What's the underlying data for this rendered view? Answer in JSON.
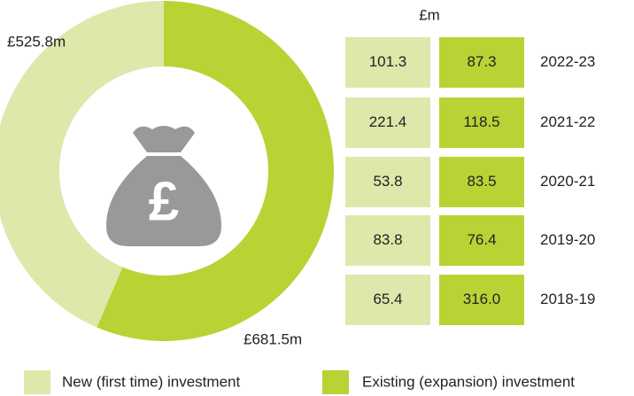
{
  "chart_data": {
    "type": "pie",
    "donut": true,
    "categories": [
      "New (first time) investment",
      "Existing (expansion) investment"
    ],
    "values": [
      525.8,
      681.5
    ],
    "value_labels": [
      "£525.8m",
      "£681.5m"
    ],
    "colors": [
      "#dde8aa",
      "#b9d335"
    ],
    "icon_symbol": "£"
  },
  "table": {
    "unit": "£m",
    "rows": [
      [
        "101.3",
        "87.3",
        "2022-23"
      ],
      [
        "221.4",
        "118.5",
        "2021-22"
      ],
      [
        "53.8",
        "83.5",
        "2020-21"
      ],
      [
        "83.8",
        "76.4",
        "2019-20"
      ],
      [
        "65.4",
        "316.0",
        "2018-19"
      ]
    ]
  }
}
